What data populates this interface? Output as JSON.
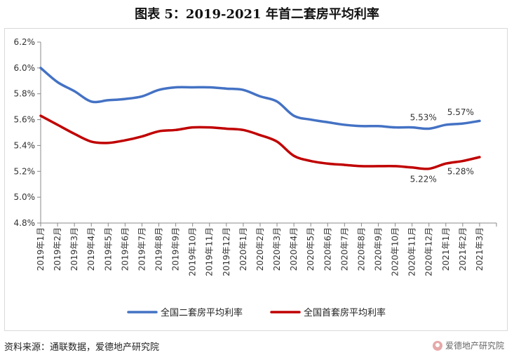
{
  "title": "图表 5：2019-2021 年首二套房平均利率",
  "source": "资料来源：通联数据，爱德地产研究院",
  "brand": "爱德地产研究院",
  "colors": {
    "second": "#4472C4",
    "first": "#C00000",
    "grid": "#d9d9d9",
    "axis": "#888888"
  },
  "chart_data": {
    "type": "line",
    "title": "",
    "xlabel": "",
    "ylabel": "",
    "ylim": [
      4.8,
      6.2
    ],
    "yticks": [
      "4.8%",
      "5.0%",
      "5.2%",
      "5.4%",
      "5.6%",
      "5.8%",
      "6.0%",
      "6.2%"
    ],
    "ytick_values": [
      4.8,
      5.0,
      5.2,
      5.4,
      5.6,
      5.8,
      6.0,
      6.2
    ],
    "grid": false,
    "legend_position": "bottom",
    "categories": [
      "2019年1月",
      "2019年2月",
      "2019年3月",
      "2019年4月",
      "2019年5月",
      "2019年6月",
      "2019年7月",
      "2019年8月",
      "2019年9月",
      "2019年10月",
      "2019年11月",
      "2019年12月",
      "2020年1月",
      "2020年2月",
      "2020年3月",
      "2020年4月",
      "2020年5月",
      "2020年6月",
      "2020年7月",
      "2020年8月",
      "2020年9月",
      "2020年10月",
      "2020年11月",
      "2020年12月",
      "2021年1月",
      "2021年2月",
      "2021年3月"
    ],
    "series": [
      {
        "name": "全国二套房平均利率",
        "color": "#4472C4",
        "values": [
          6.0,
          5.89,
          5.82,
          5.74,
          5.75,
          5.76,
          5.78,
          5.83,
          5.85,
          5.85,
          5.85,
          5.84,
          5.83,
          5.78,
          5.74,
          5.63,
          5.6,
          5.58,
          5.56,
          5.55,
          5.55,
          5.54,
          5.54,
          5.53,
          5.56,
          5.57,
          5.59
        ]
      },
      {
        "name": "全国首套房平均利率",
        "color": "#C00000",
        "values": [
          5.63,
          5.56,
          5.49,
          5.43,
          5.42,
          5.44,
          5.47,
          5.51,
          5.52,
          5.54,
          5.54,
          5.53,
          5.52,
          5.48,
          5.43,
          5.32,
          5.28,
          5.26,
          5.25,
          5.24,
          5.24,
          5.24,
          5.23,
          5.22,
          5.26,
          5.28,
          5.31
        ]
      }
    ],
    "annotations": [
      {
        "text": "5.53%",
        "series": 0,
        "index": 23,
        "position": "above"
      },
      {
        "text": "5.57%",
        "series": 0,
        "index": 25,
        "position": "above"
      },
      {
        "text": "5.22%",
        "series": 1,
        "index": 23,
        "position": "below"
      },
      {
        "text": "5.28%",
        "series": 1,
        "index": 25,
        "position": "below"
      }
    ]
  }
}
